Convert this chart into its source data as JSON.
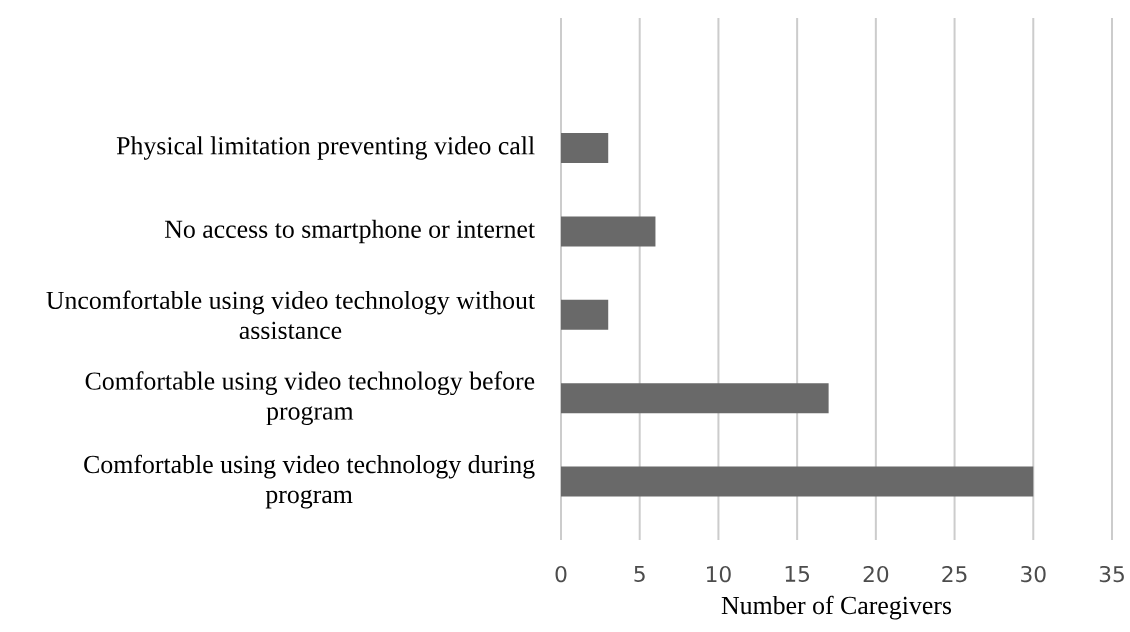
{
  "chart_data": {
    "type": "bar",
    "orientation": "horizontal",
    "categories": [
      "Physical limitation preventing video call",
      "No access to smartphone or internet",
      "Uncomfortable using video technology without assistance",
      "Comfortable using video technology before program",
      "Comfortable using video technology during program"
    ],
    "values": [
      3,
      6,
      3,
      17,
      30
    ],
    "color": "#696969",
    "xlabel": "Number of Caregivers",
    "xlim": [
      0,
      35
    ],
    "xticks": [
      0,
      5,
      10,
      15,
      20,
      25,
      30,
      35
    ],
    "grid": "x"
  }
}
